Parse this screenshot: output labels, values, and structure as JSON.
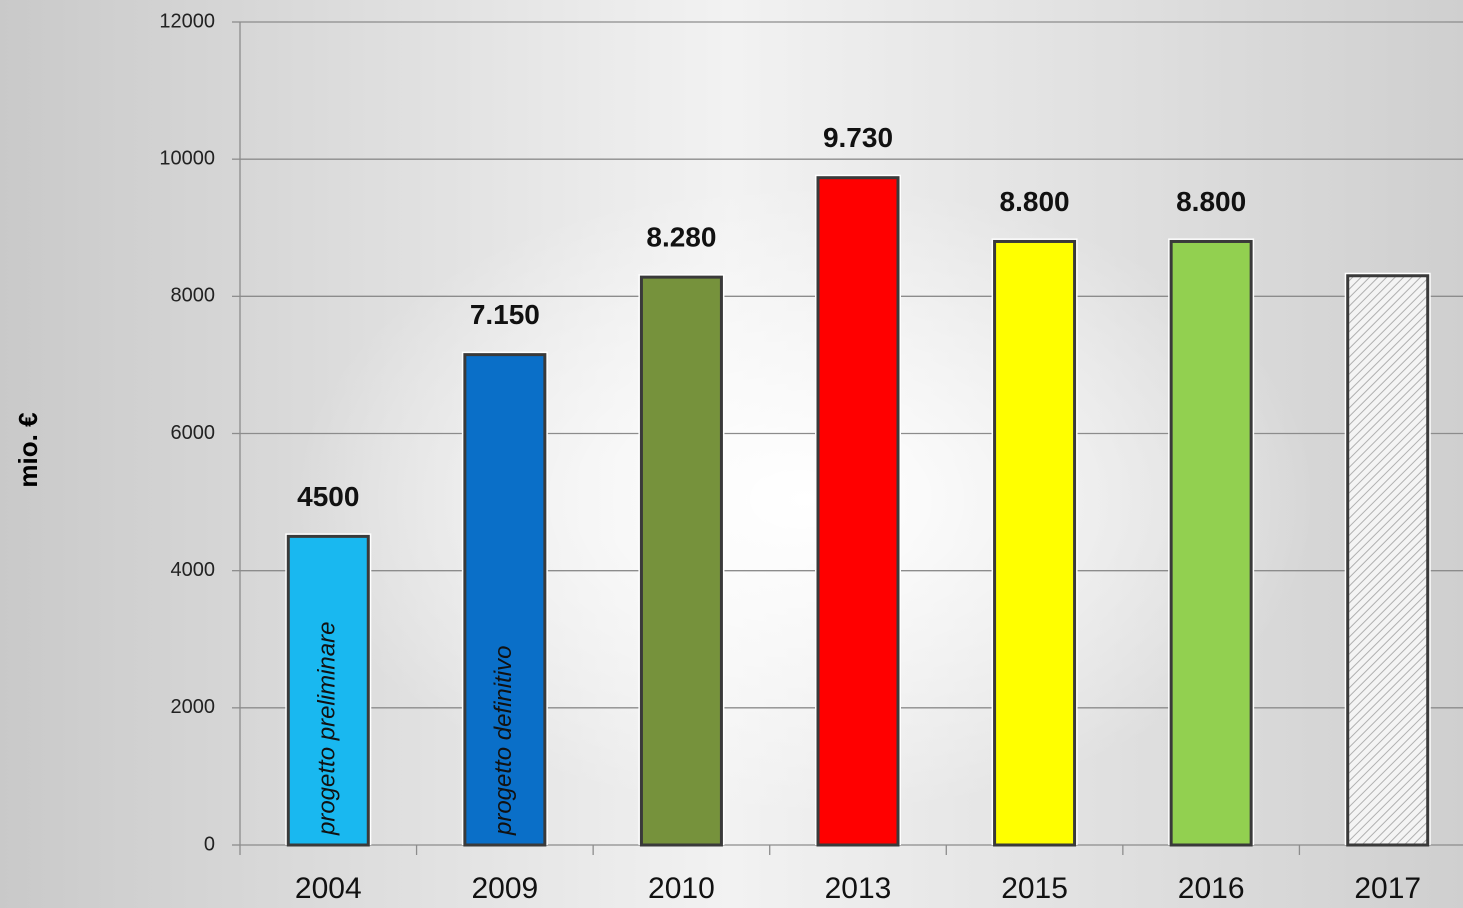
{
  "chart_data": {
    "type": "bar",
    "y_label": "mio. €",
    "categories": [
      "2004",
      "2009",
      "2010",
      "2013",
      "2015",
      "2016",
      "2017"
    ],
    "values": [
      4500,
      7150,
      8280,
      9730,
      8800,
      8800,
      8300
    ],
    "value_labels": [
      "4500",
      "7.150",
      "8.280",
      "9.730",
      "8.800",
      "8.800",
      null
    ],
    "bar_annotations": [
      "progetto preliminare",
      "progetto definitivo",
      null,
      null,
      null,
      null,
      null
    ],
    "colors": [
      "#19b8f0",
      "#0a6fc8",
      "#76923c",
      "#ff0000",
      "#ffff00",
      "#92d050",
      "#e6e6e6"
    ],
    "hatched": [
      false,
      false,
      false,
      false,
      false,
      false,
      true
    ],
    "ylim": [
      0,
      12000
    ],
    "yticks": [
      0,
      2000,
      4000,
      6000,
      8000,
      10000,
      12000
    ],
    "grid": true
  }
}
